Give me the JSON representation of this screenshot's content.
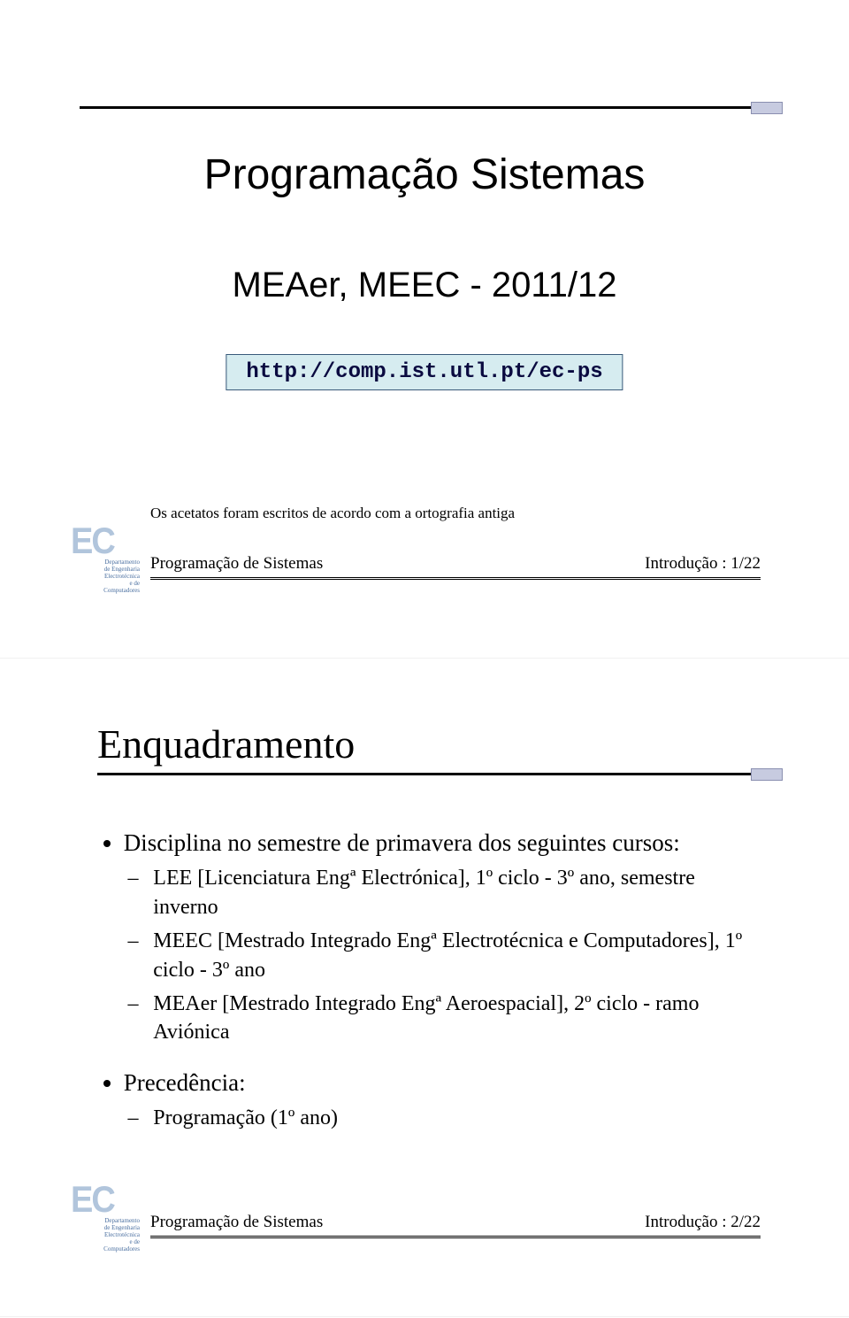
{
  "colors": {
    "accent_box_fill": "#c7cbe0",
    "accent_box_border": "#8a8fb0",
    "url_box_fill": "#d6ecf0",
    "url_box_border": "#3a5a7a",
    "logo_text": "#b1c5dc",
    "logo_dept": "#4a6fa0"
  },
  "logo": {
    "ec_text": "EC",
    "dept_lines": [
      "Departamento",
      "de Engenharia",
      "Electrotécnica",
      "e de",
      "Computadores"
    ]
  },
  "slide1": {
    "title": "Programação Sistemas",
    "subtitle": "MEAer, MEEC - 2011/12",
    "url": "http://comp.ist.utl.pt/ec-ps",
    "note": "Os acetatos foram escritos de acordo com a ortografia antiga",
    "footer_left": "Programação de Sistemas",
    "footer_right": "Introdução : 1/22"
  },
  "slide2": {
    "title": "Enquadramento",
    "bullet1": "Disciplina no semestre de primavera dos seguintes cursos:",
    "sub1": "LEE [Licenciatura Engª Electrónica], 1º ciclo - 3º ano, semestre inverno",
    "sub2": "MEEC [Mestrado Integrado Engª Electrotécnica e Computadores], 1º ciclo - 3º ano",
    "sub3": "MEAer [Mestrado Integrado Engª Aeroespacial], 2º ciclo - ramo Aviónica",
    "bullet2": "Precedência:",
    "sub4": "Programação (1º ano)",
    "footer_left": "Programação de Sistemas",
    "footer_right": "Introdução : 2/22"
  }
}
